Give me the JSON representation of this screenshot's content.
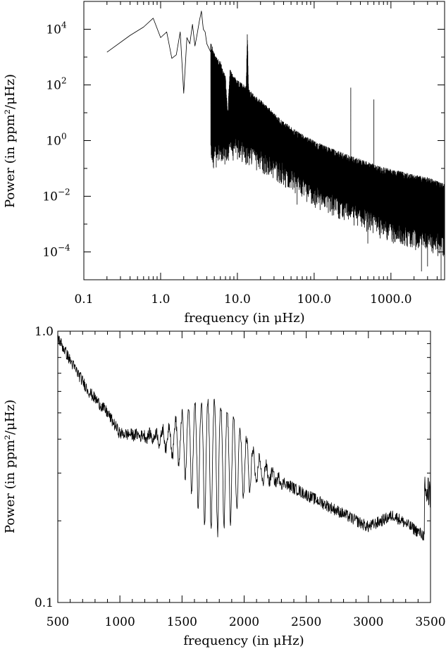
{
  "chart_data": [
    {
      "type": "line",
      "xscale": "log",
      "yscale": "log",
      "xlim": [
        0.1,
        5000
      ],
      "ylim": [
        1e-05,
        100000
      ],
      "xlabel": "frequency (in μHz)",
      "ylabel": "Power (in ppm²/μHz)",
      "x_ticks": [
        {
          "value": 0.1,
          "label": "0.1"
        },
        {
          "value": 1,
          "label": "1.0"
        },
        {
          "value": 10,
          "label": "10.0"
        },
        {
          "value": 100,
          "label": "100.0"
        },
        {
          "value": 1000,
          "label": "1000.0"
        }
      ],
      "y_ticks": [
        {
          "value": 0.0001,
          "mant": "10",
          "exp": "−4"
        },
        {
          "value": 0.01,
          "mant": "10",
          "exp": "−2"
        },
        {
          "value": 1,
          "mant": "10",
          "exp": "0"
        },
        {
          "value": 100,
          "mant": "10",
          "exp": "2"
        },
        {
          "value": 10000,
          "mant": "10",
          "exp": "4"
        }
      ],
      "series": [
        {
          "x": [
            0.2,
            0.4,
            0.6,
            0.8,
            1.0,
            1.2,
            1.4,
            1.6,
            1.8,
            2.0,
            2.2,
            2.4,
            2.6,
            2.8,
            3.0,
            3.2,
            3.4,
            3.6,
            3.8,
            4.0,
            4.5,
            5.0,
            6.0,
            7.0,
            7.5,
            8.0,
            10,
            13,
            13.5,
            14,
            16,
            20,
            25,
            30,
            40,
            50,
            60,
            80,
            100,
            150,
            200,
            300,
            400,
            500,
            700,
            1000,
            1500,
            2000,
            3000,
            4000,
            5000
          ],
          "y": [
            1500,
            6000,
            12000,
            25000,
            5000,
            8000,
            900,
            1200,
            8000,
            50,
            5000,
            3000,
            15000,
            2500,
            7000,
            20000,
            45000,
            10000,
            8000,
            3000,
            1500,
            600,
            300,
            80,
            5,
            150,
            60,
            40,
            4000,
            30,
            20,
            12,
            7,
            4,
            2,
            1.3,
            0.9,
            0.6,
            0.4,
            0.25,
            0.18,
            0.12,
            0.09,
            0.07,
            0.05,
            0.04,
            0.03,
            0.025,
            0.02,
            0.015,
            0.012
          ],
          "noise_floor": [
            {
              "x": 5,
              "y": 0.5
            },
            {
              "x": 10,
              "y": 1.0
            },
            {
              "x": 30,
              "y": 0.2
            },
            {
              "x": 100,
              "y": 0.02
            },
            {
              "x": 300,
              "y": 0.005
            },
            {
              "x": 1000,
              "y": 0.001
            },
            {
              "x": 5000,
              "y": 0.0003
            }
          ],
          "spikes": [
            {
              "x": 7.5,
              "y": 5
            },
            {
              "x": 13.5,
              "y": 4000
            },
            {
              "x": 50,
              "y": 0.02
            },
            {
              "x": 60,
              "y": 0.005
            },
            {
              "x": 150,
              "y": 0.03
            },
            {
              "x": 300,
              "y": 80
            },
            {
              "x": 350,
              "y": 0.003
            },
            {
              "x": 500,
              "y": 0.0002
            },
            {
              "x": 600,
              "y": 30
            },
            {
              "x": 1800,
              "y": 0.00015
            },
            {
              "x": 2500,
              "y": 2e-05
            },
            {
              "x": 3000,
              "y": 3e-05
            },
            {
              "x": 4500,
              "y": 1e-05
            }
          ]
        }
      ]
    },
    {
      "type": "line",
      "xscale": "linear",
      "yscale": "log",
      "xlim": [
        500,
        3500
      ],
      "ylim": [
        0.1,
        1.0
      ],
      "xlabel": "frequency (in μHz)",
      "ylabel": "Power (in ppm²/μHz)",
      "x_ticks": [
        {
          "value": 500,
          "label": "500"
        },
        {
          "value": 1000,
          "label": "1000"
        },
        {
          "value": 1500,
          "label": "1500"
        },
        {
          "value": 2000,
          "label": "2000"
        },
        {
          "value": 2500,
          "label": "2500"
        },
        {
          "value": 3000,
          "label": "3000"
        },
        {
          "value": 3500,
          "label": "3500"
        }
      ],
      "y_ticks": [
        {
          "value": 0.1,
          "label": "0.1"
        },
        {
          "value": 1.0,
          "label": "1.0"
        }
      ],
      "series": [
        {
          "background": [
            {
              "x": 500,
              "y": 0.95
            },
            {
              "x": 600,
              "y": 0.78
            },
            {
              "x": 750,
              "y": 0.6
            },
            {
              "x": 900,
              "y": 0.5
            },
            {
              "x": 1000,
              "y": 0.42
            },
            {
              "x": 1500,
              "y": 0.4
            },
            {
              "x": 2000,
              "y": 0.33
            },
            {
              "x": 2500,
              "y": 0.25
            },
            {
              "x": 3000,
              "y": 0.19
            },
            {
              "x": 3200,
              "y": 0.21
            },
            {
              "x": 3500,
              "y": 0.17
            }
          ],
          "modes": {
            "spacing": 52,
            "center": 1760,
            "width": 600,
            "max_height": 0.42,
            "range": [
              1000,
              2600
            ]
          },
          "end_rise": {
            "x": 3490,
            "y": 0.27
          }
        }
      ]
    }
  ]
}
